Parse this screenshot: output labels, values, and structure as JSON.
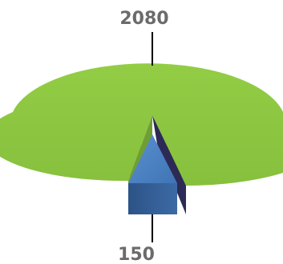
{
  "chart_data": {
    "type": "pie",
    "style": "3d",
    "categories": [
      "",
      ""
    ],
    "values": [
      2080,
      150
    ],
    "data_labels": [
      "2080",
      "150"
    ],
    "colors": {
      "slice_large_top": "#8dc63f",
      "slice_large_side": "#5a8a2a",
      "slice_small_top": "#4f86c6",
      "slice_small_side": "#2f5a8f",
      "leader_line": "#000000",
      "label_text": "#6b6b6b"
    },
    "legend": "none"
  }
}
